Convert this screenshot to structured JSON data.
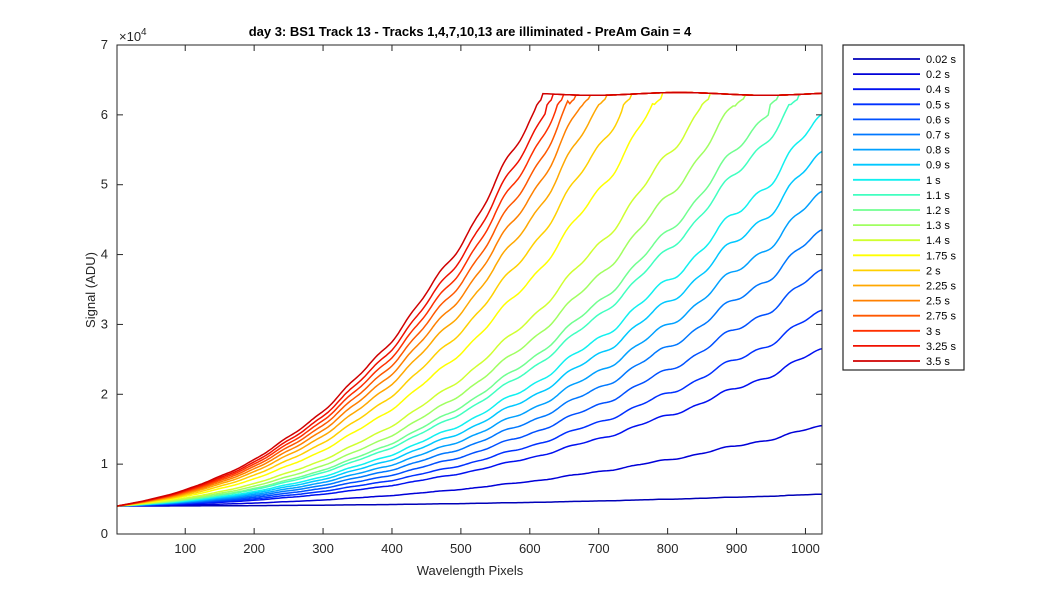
{
  "chart_data": {
    "type": "line",
    "title": "day 3: BS1  Track 13 - Tracks 1,4,7,10,13 are illiminated - PreAm Gain = 4",
    "xlabel": "Wavelength Pixels",
    "ylabel": "Signal (ADU)",
    "y_scale_base": "×10",
    "y_scale_exponent": "4",
    "xlim": [
      1,
      1024
    ],
    "ylim": [
      0,
      70000
    ],
    "xticks": [
      100,
      200,
      300,
      400,
      500,
      600,
      700,
      800,
      900,
      1000
    ],
    "yticks": [
      0,
      1,
      2,
      3,
      4,
      5,
      6,
      7
    ],
    "legend_position": "outside-right-top",
    "series": [
      {
        "name": "0.02 s",
        "color": "#0000b8",
        "shoulder": 0,
        "end": 5700
      },
      {
        "name": "0.2 s",
        "color": "#0000d8",
        "shoulder": 0,
        "end": 15500
      },
      {
        "name": "0.4 s",
        "color": "#0010f0",
        "shoulder": 0,
        "end": 26500
      },
      {
        "name": "0.5 s",
        "color": "#0030ff",
        "shoulder": 0,
        "end": 32000
      },
      {
        "name": "0.6 s",
        "color": "#0050ff",
        "shoulder": 0,
        "end": 37800
      },
      {
        "name": "0.7 s",
        "color": "#0078ff",
        "shoulder": 0,
        "end": 43500
      },
      {
        "name": "0.8 s",
        "color": "#00a0ff",
        "shoulder": 0,
        "end": 49000
      },
      {
        "name": "0.9 s",
        "color": "#00c8ff",
        "shoulder": 0,
        "end": 54700
      },
      {
        "name": "1 s",
        "color": "#10f0f0",
        "shoulder": 0,
        "end": 60000
      },
      {
        "name": "1.1 s",
        "color": "#40ffc0",
        "shoulder": 990,
        "end": 63000
      },
      {
        "name": "1.2 s",
        "color": "#70ff90",
        "shoulder": 960,
        "end": 63000
      },
      {
        "name": "1.3 s",
        "color": "#a0ff60",
        "shoulder": 910,
        "end": 63000
      },
      {
        "name": "1.4 s",
        "color": "#d0ff30",
        "shoulder": 860,
        "end": 63000
      },
      {
        "name": "1.75 s",
        "color": "#ffff00",
        "shoulder": 790,
        "end": 63000
      },
      {
        "name": "2 s",
        "color": "#ffd000",
        "shoulder": 745,
        "end": 63000
      },
      {
        "name": "2.25 s",
        "color": "#ffa800",
        "shoulder": 710,
        "end": 63000
      },
      {
        "name": "2.5 s",
        "color": "#ff8000",
        "shoulder": 685,
        "end": 63000
      },
      {
        "name": "2.75 s",
        "color": "#ff5800",
        "shoulder": 665,
        "end": 63000
      },
      {
        "name": "3 s",
        "color": "#ff3000",
        "shoulder": 648,
        "end": 63000
      },
      {
        "name": "3.25 s",
        "color": "#f01000",
        "shoulder": 633,
        "end": 63000
      },
      {
        "name": "3.5 s",
        "color": "#d00000",
        "shoulder": 618,
        "end": 63000
      }
    ]
  }
}
